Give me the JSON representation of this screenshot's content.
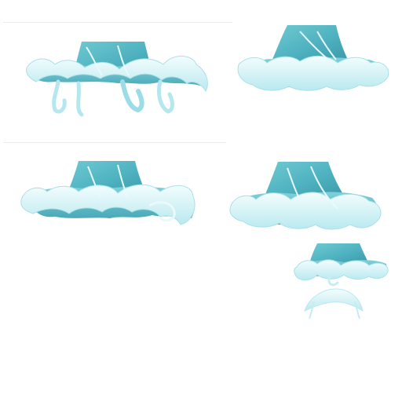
{
  "sprite_sheet": {
    "background": "#ffffff",
    "palette": {
      "deep": "#3f9fae",
      "mid": "#5fc1cc",
      "light": "#8fd8df",
      "pale": "#c4eef2",
      "foam": "#eafafc",
      "outline": "#9bdde6"
    },
    "frames": [
      {
        "id": "frame-1",
        "variant": "splash-drips"
      },
      {
        "id": "frame-2",
        "variant": "wide-splash"
      },
      {
        "id": "frame-3",
        "variant": "splash"
      },
      {
        "id": "frame-4",
        "variant": "splash"
      },
      {
        "id": "frame-5",
        "variant": "small-splash"
      },
      {
        "id": "frame-6",
        "variant": "foam-arc"
      }
    ]
  }
}
